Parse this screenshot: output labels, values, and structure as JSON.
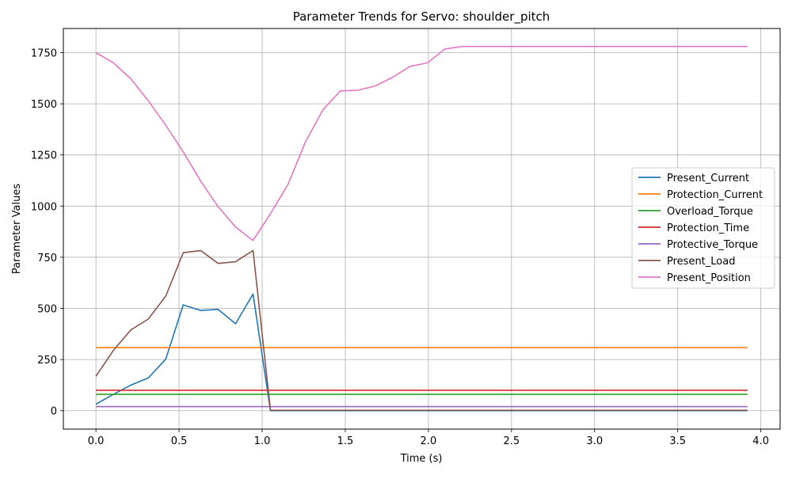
{
  "chart_data": {
    "type": "line",
    "title": "Parameter Trends for Servo: shoulder_pitch",
    "xlabel": "Time (s)",
    "ylabel": "Parameter Values",
    "xlim": [
      -0.196,
      4.116
    ],
    "ylim": [
      -90,
      1868
    ],
    "xticks": [
      0.0,
      0.5,
      1.0,
      1.5,
      2.0,
      2.5,
      3.0,
      3.5,
      4.0
    ],
    "xtick_labels": [
      "0.0",
      "0.5",
      "1.0",
      "1.5",
      "2.0",
      "2.5",
      "3.0",
      "3.5",
      "4.0"
    ],
    "yticks": [
      0,
      250,
      500,
      750,
      1000,
      1250,
      1500,
      1750
    ],
    "ytick_labels": [
      "0",
      "250",
      "500",
      "750",
      "1000",
      "1250",
      "1500",
      "1750"
    ],
    "grid": true,
    "legend_position": "center-right",
    "x": [
      0.0,
      0.105,
      0.21,
      0.315,
      0.42,
      0.525,
      0.63,
      0.735,
      0.84,
      0.945,
      1.05,
      1.155,
      1.26,
      1.365,
      1.47,
      1.575,
      1.68,
      1.785,
      1.89,
      1.995,
      2.1,
      2.205,
      2.31,
      2.415,
      2.52,
      2.625,
      2.73,
      2.835,
      2.94,
      3.045,
      3.15,
      3.255,
      3.36,
      3.465,
      3.57,
      3.675,
      3.78,
      3.885,
      3.92
    ],
    "series": [
      {
        "name": "Present_Current",
        "color": "#1f77b4",
        "values": [
          32,
          80,
          125,
          160,
          252,
          517,
          490,
          495,
          425,
          570,
          0,
          0,
          0,
          0,
          0,
          0,
          0,
          0,
          0,
          0,
          0,
          0,
          0,
          0,
          0,
          0,
          0,
          0,
          0,
          0,
          0,
          0,
          0,
          0,
          0,
          0,
          0,
          0,
          0
        ]
      },
      {
        "name": "Protection_Current",
        "color": "#ff7f0e",
        "values": [
          308,
          308,
          308,
          308,
          308,
          308,
          308,
          308,
          308,
          308,
          308,
          308,
          308,
          308,
          308,
          308,
          308,
          308,
          308,
          308,
          308,
          308,
          308,
          308,
          308,
          308,
          308,
          308,
          308,
          308,
          308,
          308,
          308,
          308,
          308,
          308,
          308,
          308,
          308
        ]
      },
      {
        "name": "Overload_Torque",
        "color": "#2ca02c",
        "values": [
          80,
          80,
          80,
          80,
          80,
          80,
          80,
          80,
          80,
          80,
          80,
          80,
          80,
          80,
          80,
          80,
          80,
          80,
          80,
          80,
          80,
          80,
          80,
          80,
          80,
          80,
          80,
          80,
          80,
          80,
          80,
          80,
          80,
          80,
          80,
          80,
          80,
          80,
          80
        ]
      },
      {
        "name": "Protection_Time",
        "color": "#d62728",
        "values": [
          100,
          100,
          100,
          100,
          100,
          100,
          100,
          100,
          100,
          100,
          100,
          100,
          100,
          100,
          100,
          100,
          100,
          100,
          100,
          100,
          100,
          100,
          100,
          100,
          100,
          100,
          100,
          100,
          100,
          100,
          100,
          100,
          100,
          100,
          100,
          100,
          100,
          100,
          100
        ]
      },
      {
        "name": "Protective_Torque",
        "color": "#9467bd",
        "values": [
          20,
          20,
          20,
          20,
          20,
          20,
          20,
          20,
          20,
          20,
          20,
          20,
          20,
          20,
          20,
          20,
          20,
          20,
          20,
          20,
          20,
          20,
          20,
          20,
          20,
          20,
          20,
          20,
          20,
          20,
          20,
          20,
          20,
          20,
          20,
          20,
          20,
          20,
          20
        ]
      },
      {
        "name": "Present_Load",
        "color": "#8c564b",
        "values": [
          168,
          295,
          395,
          448,
          560,
          772,
          783,
          720,
          728,
          783,
          2,
          2,
          2,
          2,
          2,
          2,
          2,
          2,
          2,
          2,
          2,
          2,
          2,
          2,
          2,
          2,
          2,
          2,
          2,
          2,
          2,
          2,
          2,
          2,
          2,
          2,
          2,
          2,
          2
        ]
      },
      {
        "name": "Present_Position",
        "color": "#e377c2",
        "values": [
          1750,
          1700,
          1622,
          1515,
          1395,
          1265,
          1122,
          997,
          898,
          832,
          963,
          1105,
          1313,
          1470,
          1563,
          1566,
          1587,
          1630,
          1683,
          1700,
          1768,
          1780,
          1780,
          1780,
          1780,
          1780,
          1780,
          1780,
          1780,
          1780,
          1780,
          1780,
          1780,
          1780,
          1780,
          1780,
          1780,
          1780,
          1780
        ]
      }
    ]
  }
}
